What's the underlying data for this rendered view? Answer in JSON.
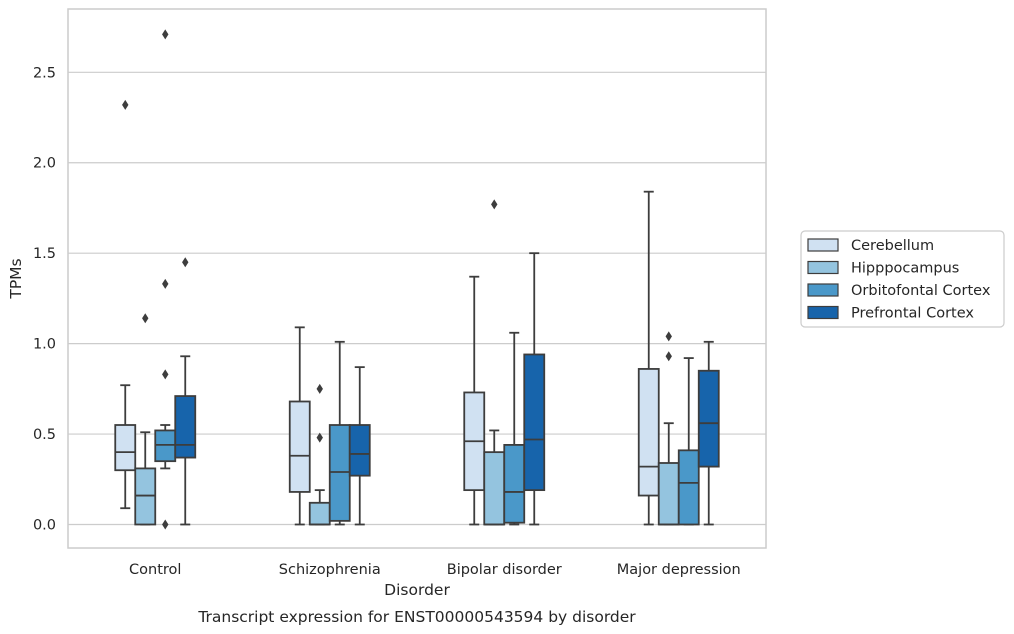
{
  "caption": "Transcript expression for ENST00000543594 by disorder",
  "chart_data": {
    "type": "box",
    "xlabel": "Disorder",
    "ylabel": "TPMs",
    "ylim": [
      -0.13,
      2.85
    ],
    "yticks": [
      "0.0",
      "0.5",
      "1.0",
      "1.5",
      "2.0",
      "2.5"
    ],
    "grid": "horizontal",
    "legend_position": "right, outside plot",
    "categories": [
      "Control",
      "Schizophrenia",
      "Bipolar disorder",
      "Major depression"
    ],
    "series": [
      {
        "name": "Cerebellum",
        "color": "#d0e1f2",
        "boxes": [
          {
            "whislo": 0.09,
            "q1": 0.3,
            "med": 0.4,
            "q3": 0.55,
            "whishi": 0.77,
            "fliers": [
              2.32
            ]
          },
          {
            "whislo": 0.0,
            "q1": 0.18,
            "med": 0.38,
            "q3": 0.68,
            "whishi": 1.09,
            "fliers": []
          },
          {
            "whislo": 0.0,
            "q1": 0.19,
            "med": 0.46,
            "q3": 0.73,
            "whishi": 1.37,
            "fliers": []
          },
          {
            "whislo": 0.0,
            "q1": 0.16,
            "med": 0.32,
            "q3": 0.86,
            "whishi": 1.84,
            "fliers": []
          }
        ]
      },
      {
        "name": "Hipppocampus",
        "color": "#94c4df",
        "boxes": [
          {
            "whislo": 0.0,
            "q1": 0.0,
            "med": 0.16,
            "q3": 0.31,
            "whishi": 0.51,
            "fliers": [
              1.14
            ]
          },
          {
            "whislo": 0.0,
            "q1": 0.0,
            "med": 0.0,
            "q3": 0.12,
            "whishi": 0.19,
            "fliers": [
              0.48,
              0.75
            ]
          },
          {
            "whislo": 0.0,
            "q1": 0.0,
            "med": 0.0,
            "q3": 0.4,
            "whishi": 0.52,
            "fliers": [
              1.77
            ]
          },
          {
            "whislo": 0.0,
            "q1": 0.0,
            "med": 0.0,
            "q3": 0.34,
            "whishi": 0.56,
            "fliers": [
              0.93,
              1.04
            ]
          }
        ]
      },
      {
        "name": "Orbitofontal Cortex",
        "color": "#4a98c9",
        "boxes": [
          {
            "whislo": 0.31,
            "q1": 0.35,
            "med": 0.44,
            "q3": 0.52,
            "whishi": 0.55,
            "fliers": [
              0.0,
              0.83,
              1.33,
              2.71
            ]
          },
          {
            "whislo": 0.0,
            "q1": 0.02,
            "med": 0.29,
            "q3": 0.55,
            "whishi": 1.01,
            "fliers": []
          },
          {
            "whislo": 0.0,
            "q1": 0.01,
            "med": 0.18,
            "q3": 0.44,
            "whishi": 1.06,
            "fliers": []
          },
          {
            "whislo": 0.0,
            "q1": 0.0,
            "med": 0.23,
            "q3": 0.41,
            "whishi": 0.92,
            "fliers": []
          }
        ]
      },
      {
        "name": "Prefrontal Cortex",
        "color": "#1764ab",
        "boxes": [
          {
            "whislo": 0.0,
            "q1": 0.37,
            "med": 0.44,
            "q3": 0.71,
            "whishi": 0.93,
            "fliers": [
              1.45
            ]
          },
          {
            "whislo": 0.0,
            "q1": 0.27,
            "med": 0.39,
            "q3": 0.55,
            "whishi": 0.87,
            "fliers": []
          },
          {
            "whislo": 0.0,
            "q1": 0.19,
            "med": 0.47,
            "q3": 0.94,
            "whishi": 1.5,
            "fliers": []
          },
          {
            "whislo": 0.0,
            "q1": 0.32,
            "med": 0.56,
            "q3": 0.85,
            "whishi": 1.01,
            "fliers": []
          }
        ]
      }
    ]
  }
}
